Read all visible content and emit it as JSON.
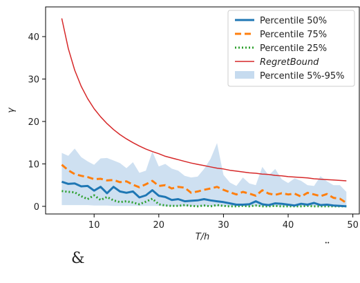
{
  "chart_data": {
    "type": "line",
    "title": "",
    "xlabel": "T/h",
    "ylabel": "γ",
    "xlim": [
      2.5,
      51.0
    ],
    "ylim": [
      -1.8,
      47.0
    ],
    "xticks": [
      10,
      20,
      30,
      40,
      50
    ],
    "yticks": [
      0,
      10,
      20,
      30,
      40
    ],
    "grid": false,
    "legend_position": "top-right",
    "x": [
      5,
      6,
      7,
      8,
      9,
      10,
      11,
      12,
      13,
      14,
      15,
      16,
      17,
      18,
      19,
      20,
      21,
      22,
      23,
      24,
      25,
      26,
      27,
      28,
      29,
      30,
      31,
      32,
      33,
      34,
      35,
      36,
      37,
      38,
      39,
      40,
      41,
      42,
      43,
      44,
      45,
      46,
      47,
      48,
      49
    ],
    "series": [
      {
        "name": "Percentile 50%",
        "style": "solid",
        "color": "#1f77b4",
        "values": [
          5.8,
          5.3,
          5.4,
          4.7,
          4.8,
          3.7,
          4.6,
          3.1,
          4.6,
          3.5,
          3.2,
          3.5,
          2.1,
          2.6,
          3.8,
          2.5,
          2.2,
          1.5,
          1.7,
          1.2,
          1.3,
          1.4,
          1.7,
          1.4,
          1.2,
          1.0,
          0.7,
          0.4,
          0.4,
          0.5,
          1.2,
          0.5,
          0.3,
          0.7,
          0.6,
          0.4,
          0.2,
          0.6,
          0.4,
          0.8,
          0.3,
          0.4,
          0.2,
          0.1,
          0.0
        ]
      },
      {
        "name": "Percentile 75%",
        "style": "dashed",
        "color": "#ff7f0e",
        "values": [
          9.8,
          8.5,
          7.6,
          7.2,
          6.9,
          6.4,
          6.5,
          6.1,
          6.2,
          5.7,
          5.9,
          5.1,
          4.5,
          5.2,
          6.0,
          4.8,
          5.0,
          4.2,
          4.6,
          4.4,
          3.2,
          3.5,
          3.9,
          4.2,
          4.6,
          3.9,
          3.3,
          2.8,
          3.4,
          3.0,
          2.5,
          3.8,
          3.0,
          2.7,
          3.1,
          2.8,
          3.0,
          2.3,
          3.2,
          2.8,
          2.4,
          2.9,
          2.0,
          1.8,
          0.8
        ]
      },
      {
        "name": "Percentile 25%",
        "style": "dotted",
        "color": "#2ca02c",
        "values": [
          3.6,
          3.4,
          3.3,
          2.4,
          1.7,
          2.6,
          1.5,
          2.2,
          1.4,
          1.0,
          1.2,
          0.9,
          0.5,
          1.1,
          1.8,
          0.5,
          0.2,
          0.1,
          0.1,
          0.3,
          0.1,
          0.0,
          0.2,
          0.0,
          0.3,
          0.1,
          0.0,
          0.0,
          0.1,
          0.0,
          0.2,
          0.0,
          0.0,
          0.1,
          0.0,
          0.0,
          0.0,
          0.0,
          0.1,
          0.0,
          0.0,
          0.0,
          0.0,
          0.0,
          0.0
        ]
      },
      {
        "name": "RegretBound",
        "style": "solid",
        "color": "#d62728",
        "formula": "1.7 + 213/T",
        "values": [
          44.3,
          37.2,
          32.1,
          28.3,
          25.4,
          23.0,
          21.1,
          19.5,
          18.1,
          16.9,
          15.9,
          15.0,
          14.2,
          13.5,
          12.9,
          12.4,
          11.8,
          11.4,
          11.0,
          10.6,
          10.2,
          9.9,
          9.6,
          9.3,
          9.0,
          8.8,
          8.5,
          8.3,
          8.1,
          7.9,
          7.8,
          7.6,
          7.5,
          7.3,
          7.2,
          7.0,
          6.9,
          6.8,
          6.7,
          6.5,
          6.4,
          6.3,
          6.2,
          6.1,
          6.0
        ]
      }
    ],
    "band": {
      "name": "Percentile 5%-95%",
      "color": "#c6dbef",
      "lower": [
        0.3,
        0.3,
        0.3,
        0.3,
        0.3,
        0.2,
        0.2,
        0.2,
        0.1,
        0.1,
        0.1,
        0.1,
        0.1,
        0.1,
        0.1,
        0.1,
        0.0,
        0.0,
        0.0,
        0.0,
        0.0,
        0.0,
        0.0,
        0.0,
        0.0,
        0.0,
        0.0,
        0.0,
        0.0,
        0.0,
        0.0,
        0.0,
        0.0,
        0.0,
        0.0,
        0.0,
        0.0,
        0.0,
        0.0,
        0.0,
        0.0,
        0.0,
        0.0,
        0.0,
        0.0
      ],
      "upper": [
        12.6,
        11.9,
        13.6,
        11.6,
        10.6,
        9.8,
        11.3,
        11.4,
        10.8,
        10.2,
        9.0,
        10.4,
        7.9,
        8.4,
        12.9,
        9.4,
        10.0,
        8.9,
        8.4,
        7.2,
        6.8,
        7.0,
        8.8,
        11.2,
        14.9,
        7.4,
        5.6,
        4.8,
        6.8,
        5.4,
        5.0,
        9.3,
        7.3,
        8.8,
        6.4,
        5.5,
        6.6,
        6.0,
        5.0,
        4.8,
        7.1,
        5.9,
        5.0,
        5.0,
        3.4
      ]
    }
  },
  "legend": {
    "items": [
      {
        "label": "Percentile 50%",
        "kind": "solid-thick",
        "color": "#1f77b4"
      },
      {
        "label": "Percentile 75%",
        "kind": "dashed",
        "color": "#ff7f0e"
      },
      {
        "label": "Percentile 25%",
        "kind": "dotted",
        "color": "#2ca02c"
      },
      {
        "label": "RegretBound",
        "kind": "solid-thin",
        "color": "#d62728",
        "italic": true
      },
      {
        "label": "Percentile 5%-95%",
        "kind": "patch",
        "color": "#c6dbef"
      }
    ]
  },
  "footer": {
    "ampersand": "&",
    "diaeresis": "¨"
  }
}
